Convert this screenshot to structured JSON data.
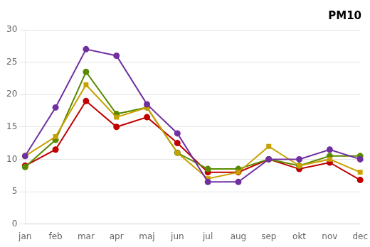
{
  "chart_data": {
    "type": "line",
    "title": "PM10",
    "categories": [
      "jan",
      "feb",
      "mar",
      "apr",
      "maj",
      "jun",
      "jul",
      "aug",
      "sep",
      "okt",
      "nov",
      "dec"
    ],
    "series": [
      {
        "color": "#7030A0",
        "marker": "circle",
        "values": [
          10.5,
          18,
          27,
          26,
          18.5,
          14,
          6.5,
          6.5,
          10,
          10,
          11.5,
          10
        ]
      },
      {
        "color": "#C8A000",
        "marker": "square",
        "values": [
          10.5,
          13.5,
          21.5,
          16.5,
          18,
          11,
          7,
          8,
          12,
          9,
          10,
          8
        ]
      },
      {
        "color": "#5A8A00",
        "marker": "circle",
        "values": [
          8.8,
          13,
          23.5,
          17,
          18,
          11,
          8.5,
          8.5,
          10,
          9,
          10.5,
          10.5
        ]
      },
      {
        "color": "#C00000",
        "marker": "circle",
        "values": [
          9,
          11.5,
          19,
          15,
          16.5,
          12.5,
          8,
          8,
          10,
          8.5,
          9.5,
          6.8
        ]
      }
    ],
    "ylim": [
      0,
      30
    ],
    "yticks": [
      0,
      5,
      10,
      15,
      20,
      25,
      30
    ],
    "grid": true
  }
}
